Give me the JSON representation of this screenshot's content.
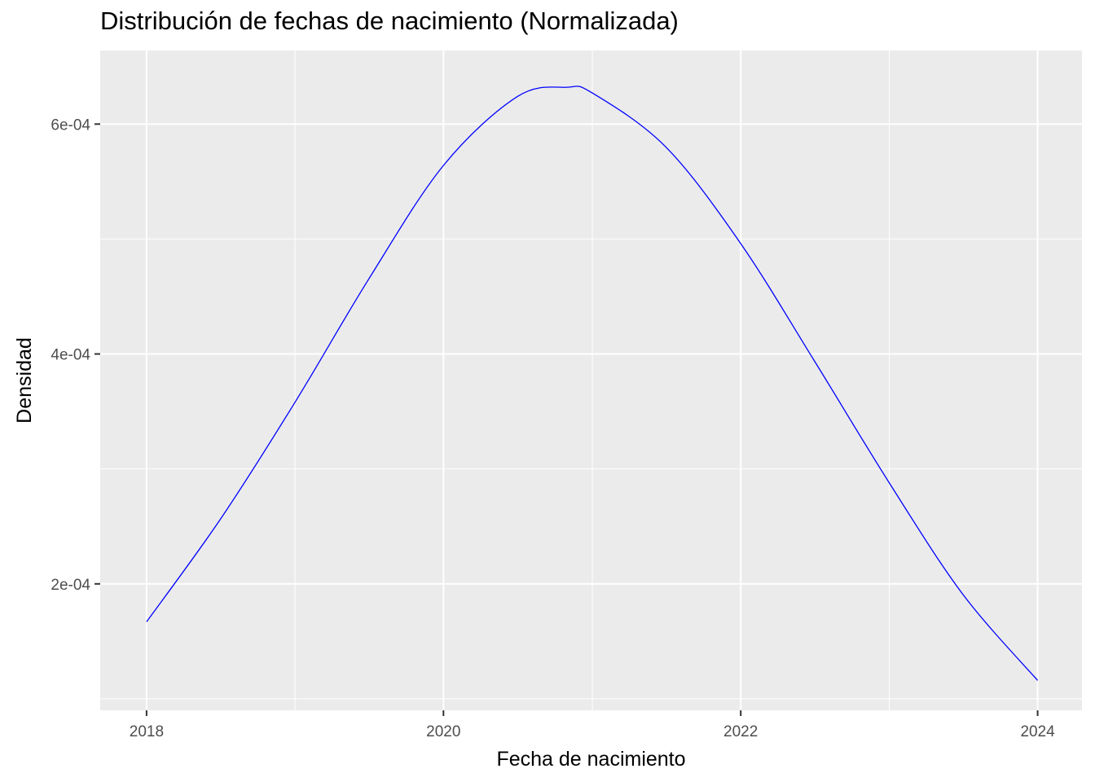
{
  "chart_data": {
    "type": "line",
    "title": "Distribución de fechas de nacimiento (Normalizada)",
    "xlabel": "Fecha de nacimiento",
    "ylabel": "Densidad",
    "x_scale": "date",
    "xlim": [
      "2017-09-09",
      "2024-04-19"
    ],
    "ylim": [
      9e-05,
      0.000664
    ],
    "x_ticks": [
      "2018",
      "2020",
      "2022",
      "2024"
    ],
    "x_tick_dates": [
      "2018-01-01",
      "2020-01-01",
      "2022-01-01",
      "2024-01-01"
    ],
    "x_minor_dates": [
      "2019-01-01",
      "2021-01-01",
      "2023-01-01"
    ],
    "y_ticks": [
      "2e-04",
      "4e-04",
      "6e-04"
    ],
    "y_tick_values": [
      0.0002,
      0.0004,
      0.0006
    ],
    "y_minor_values": [
      0.0001,
      0.0003,
      0.0005
    ],
    "grid": true,
    "background": "#ebebeb",
    "series": [
      {
        "color": "#0000ff",
        "x": [
          "2018-01-01",
          "2018-07-01",
          "2019-01-01",
          "2019-07-01",
          "2020-01-01",
          "2020-07-01",
          "2020-10-30",
          "2021-01-01",
          "2021-07-01",
          "2022-01-01",
          "2022-07-01",
          "2023-01-01",
          "2023-07-01",
          "2024-01-01"
        ],
        "y": [
          0.000167,
          0.000256,
          0.000358,
          0.000465,
          0.000564,
          0.000624,
          0.000632,
          0.000627,
          0.00058,
          0.000496,
          0.000394,
          0.000288,
          0.000191,
          0.000116
        ]
      }
    ]
  }
}
